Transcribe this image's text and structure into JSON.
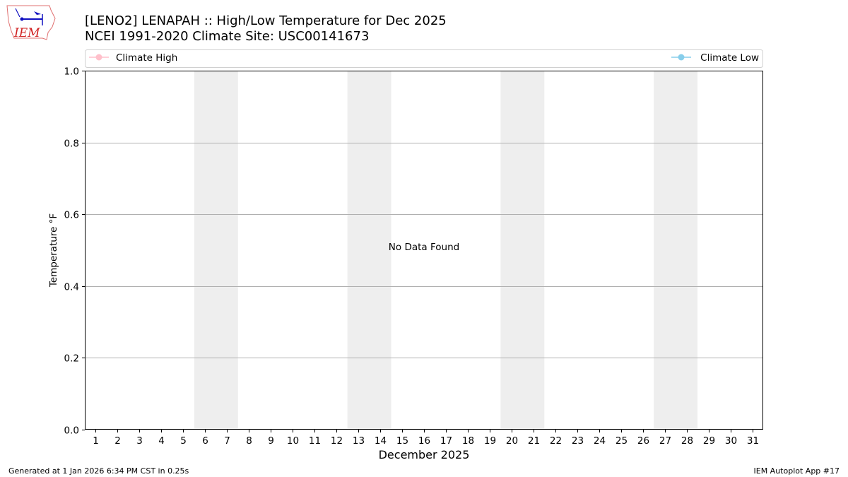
{
  "logo": {
    "text": "IEM"
  },
  "header": {
    "title_line1": "[LENO2] LENAPAH :: High/Low Temperature for Dec 2025",
    "title_line2": "NCEI 1991-2020 Climate Site: USC00141673"
  },
  "footer": {
    "generated": "Generated at 1 Jan 2026 6:34 PM CST in 0.25s",
    "app": "IEM Autoplot App #17"
  },
  "chart_data": {
    "type": "line",
    "title": "[LENO2] LENAPAH :: High/Low Temperature for Dec 2025",
    "subtitle": "NCEI 1991-2020 Climate Site: USC00141673",
    "xlabel": "December 2025",
    "ylabel": "Temperature °F",
    "xlim": [
      0.5,
      31.5
    ],
    "ylim": [
      0.0,
      1.0
    ],
    "x_ticks": [
      "1",
      "2",
      "3",
      "4",
      "5",
      "6",
      "7",
      "8",
      "9",
      "10",
      "11",
      "12",
      "13",
      "14",
      "15",
      "16",
      "17",
      "18",
      "19",
      "20",
      "21",
      "22",
      "23",
      "24",
      "25",
      "26",
      "27",
      "28",
      "29",
      "30",
      "31"
    ],
    "y_ticks": [
      "0.0",
      "0.2",
      "0.4",
      "0.6",
      "0.8",
      "1.0"
    ],
    "grid": "horizontal",
    "weekend_shading": [
      [
        5.5,
        7.5
      ],
      [
        12.5,
        14.5
      ],
      [
        19.5,
        21.5
      ],
      [
        26.5,
        28.5
      ]
    ],
    "shade_color": "#eeeeee",
    "annotation": "No Data Found",
    "legend": {
      "placement": "top",
      "entries": [
        {
          "name": "Climate High",
          "color": "#ffc0cb"
        },
        {
          "name": "Climate Low",
          "color": "#87ceeb"
        }
      ]
    },
    "series": [
      {
        "name": "Climate High",
        "color": "#ffc0cb",
        "values": []
      },
      {
        "name": "Climate Low",
        "color": "#87ceeb",
        "values": []
      }
    ]
  }
}
